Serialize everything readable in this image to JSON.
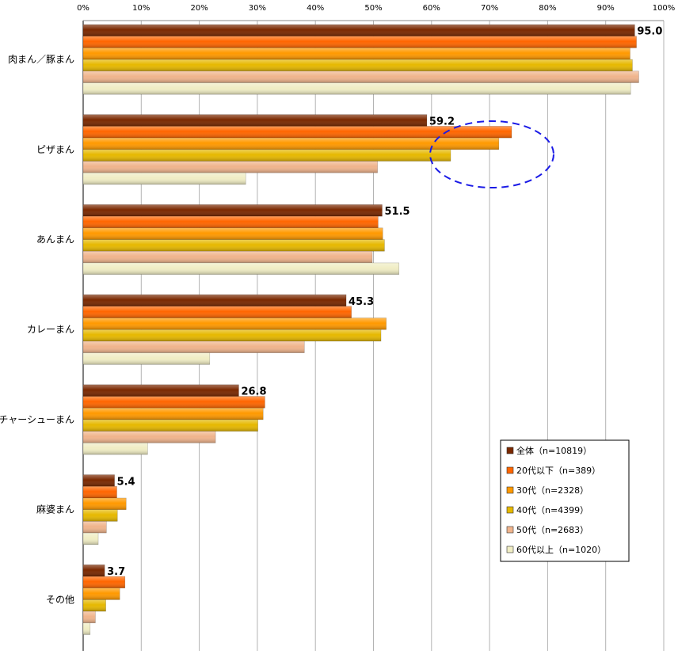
{
  "chart_data": {
    "type": "bar",
    "orientation": "horizontal",
    "title": "",
    "xlabel": "",
    "ylabel": "",
    "xlim": [
      0,
      100
    ],
    "x_ticks": [
      "0%",
      "10%",
      "20%",
      "30%",
      "40%",
      "50%",
      "60%",
      "70%",
      "80%",
      "90%",
      "100%"
    ],
    "grid": true,
    "legend_position": "bottom-right",
    "categories": [
      "肉まん／豚まん",
      "ピザまん",
      "あんまん",
      "カレーまん",
      "チャーシューまん",
      "麻婆まん",
      "その他"
    ],
    "series": [
      {
        "name": "全体（n=10819）",
        "color": "#7a2800",
        "values": [
          95.0,
          59.2,
          51.5,
          45.3,
          26.8,
          5.4,
          3.7
        ]
      },
      {
        "name": "20代以下（n=389）",
        "color": "#ff6600",
        "values": [
          95.3,
          73.8,
          50.8,
          46.2,
          31.3,
          5.8,
          7.2
        ]
      },
      {
        "name": "30代（n=2328）",
        "color": "#ff9900",
        "values": [
          94.2,
          71.6,
          51.6,
          52.2,
          31.0,
          7.4,
          6.3
        ]
      },
      {
        "name": "40代（n=4399）",
        "color": "#e6b800",
        "values": [
          94.6,
          63.3,
          51.9,
          51.3,
          30.1,
          5.9,
          3.9
        ]
      },
      {
        "name": "50代（n=2683）",
        "color": "#f0b48c",
        "values": [
          95.7,
          50.7,
          49.8,
          38.1,
          22.8,
          4.0,
          2.1
        ]
      },
      {
        "name": "60代以上（n=1020）",
        "color": "#f0edc4",
        "values": [
          94.3,
          28.0,
          54.4,
          21.8,
          11.1,
          2.6,
          1.2
        ]
      }
    ],
    "data_labels": [
      "95.0",
      "59.2",
      "51.5",
      "45.3",
      "26.8",
      "5.4",
      "3.7"
    ],
    "annotation": "dashed blue ellipse highlighting 20代以下 and 30代 bars for ピザまん"
  }
}
